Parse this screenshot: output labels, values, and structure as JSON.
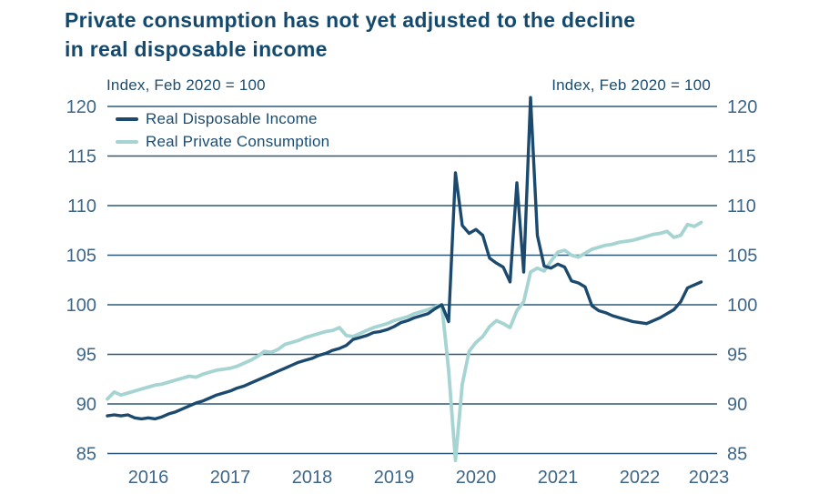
{
  "title": {
    "line1": "Private consumption has not yet adjusted to the decline",
    "line2": "in real disposable income"
  },
  "axis": {
    "left_title": "Index, Feb 2020 = 100",
    "right_title": "Index, Feb 2020 = 100"
  },
  "legend": {
    "income_label": "Real Disposable Income",
    "consumption_label": "Real Private Consumption"
  },
  "colors": {
    "income_line": "#1b4a6e",
    "consumption_line": "#a6d4d2",
    "gridline": "#2b5878",
    "tick_text": "#3d6689",
    "title_text": "#14496e",
    "background": "#ffffff"
  },
  "chart_data": {
    "type": "line",
    "title": "Private consumption has not yet adjusted to the decline in real disposable income",
    "index_note": "Index, Feb 2020 = 100",
    "frequency": "monthly",
    "x_start": "2016-01",
    "x_end": "2023-04",
    "ylim": [
      85,
      120
    ],
    "yticks": [
      85,
      90,
      95,
      100,
      105,
      110,
      115,
      120
    ],
    "grid": "horizontal",
    "legend_position": "top-left-inside",
    "year_labels": [
      {
        "label": "2016",
        "month": 6
      },
      {
        "label": "2017",
        "month": 18
      },
      {
        "label": "2018",
        "month": 30
      },
      {
        "label": "2019",
        "month": 42
      },
      {
        "label": "2020",
        "month": 54
      },
      {
        "label": "2021",
        "month": 66
      },
      {
        "label": "2022",
        "month": 78
      },
      {
        "label": "2023",
        "month": 90
      }
    ],
    "series": [
      {
        "name": "Real Disposable Income",
        "color": "#1b4a6e",
        "values": [
          88.8,
          88.9,
          88.8,
          88.9,
          88.6,
          88.5,
          88.6,
          88.5,
          88.7,
          89.0,
          89.2,
          89.5,
          89.8,
          90.1,
          90.3,
          90.6,
          90.9,
          91.1,
          91.3,
          91.6,
          91.8,
          92.1,
          92.4,
          92.7,
          93.0,
          93.3,
          93.6,
          93.9,
          94.2,
          94.4,
          94.6,
          94.9,
          95.1,
          95.4,
          95.6,
          95.9,
          96.5,
          96.7,
          96.9,
          97.2,
          97.3,
          97.5,
          97.8,
          98.2,
          98.4,
          98.7,
          98.9,
          99.1,
          99.6,
          100.0,
          98.3,
          113.3,
          108.0,
          107.2,
          107.6,
          107.0,
          104.7,
          104.2,
          103.8,
          102.3,
          112.3,
          103.3,
          120.9,
          107.0,
          103.9,
          103.7,
          104.1,
          103.8,
          102.4,
          102.2,
          101.8,
          99.9,
          99.4,
          99.2,
          98.9,
          98.7,
          98.5,
          98.3,
          98.2,
          98.1,
          98.4,
          98.7,
          99.1,
          99.5,
          100.3,
          101.7,
          102.0,
          102.3
        ]
      },
      {
        "name": "Real Private Consumption",
        "color": "#a6d4d2",
        "values": [
          90.5,
          91.2,
          90.9,
          91.1,
          91.3,
          91.5,
          91.7,
          91.9,
          92.0,
          92.2,
          92.4,
          92.6,
          92.8,
          92.7,
          93.0,
          93.2,
          93.4,
          93.5,
          93.6,
          93.8,
          94.1,
          94.4,
          94.8,
          95.3,
          95.2,
          95.5,
          96.0,
          96.2,
          96.4,
          96.7,
          96.9,
          97.1,
          97.3,
          97.4,
          97.7,
          96.9,
          96.8,
          97.1,
          97.4,
          97.7,
          97.9,
          98.1,
          98.4,
          98.6,
          98.8,
          99.1,
          99.3,
          99.5,
          99.8,
          100.0,
          93.4,
          84.3,
          92.0,
          95.3,
          96.2,
          96.8,
          97.8,
          98.4,
          98.1,
          97.7,
          99.4,
          100.3,
          103.3,
          103.7,
          103.4,
          104.4,
          105.3,
          105.5,
          105.0,
          104.8,
          105.2,
          105.6,
          105.8,
          106.0,
          106.1,
          106.3,
          106.4,
          106.5,
          106.7,
          106.9,
          107.1,
          107.2,
          107.4,
          106.8,
          107.0,
          108.1,
          107.9,
          108.3
        ]
      }
    ]
  }
}
